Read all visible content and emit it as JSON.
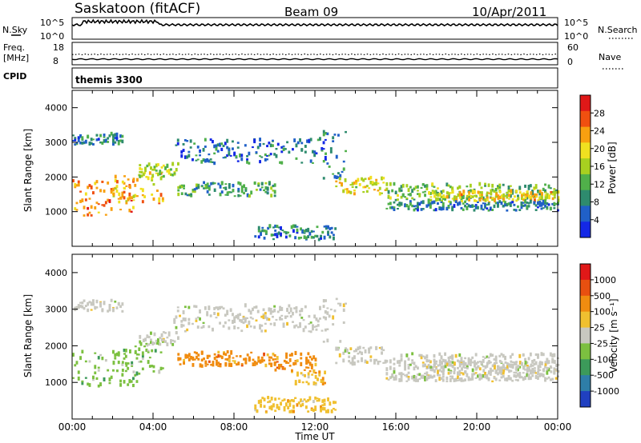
{
  "header": {
    "station": "Saskatoon (fitACF)",
    "beam": "Beam 09",
    "date": "10/Apr/2011"
  },
  "noise_panel": {
    "left_label": "N.Sky",
    "left_ticks": [
      "10^5",
      "10^0"
    ],
    "right_label": "N.Search",
    "right_ticks": [
      "10^5",
      "10^0"
    ]
  },
  "freq_panel": {
    "left_label_line1": "Freq.",
    "left_label_line2": "[MHz]",
    "left_ticks": [
      "18",
      "8"
    ],
    "right_label": "Nave",
    "right_ticks": [
      "60",
      "0"
    ]
  },
  "cpid_panel": {
    "label": "CPID",
    "value": "themis 3300"
  },
  "chart_data": [
    {
      "type": "heatmap",
      "name": "power",
      "ylabel": "Slant Range [km]",
      "ylim": [
        0,
        4500
      ],
      "yticks": [
        "1000",
        "2000",
        "3000",
        "4000"
      ],
      "xlim_hours": [
        0,
        24
      ],
      "colorbar_label": "Power [dB]",
      "colorbar_ticks": [
        "4",
        "8",
        "12",
        "16",
        "20",
        "24",
        "28"
      ],
      "colorbar_colors": [
        "#1428e6",
        "#2060c8",
        "#2e8b6e",
        "#50b04a",
        "#a8d020",
        "#f0e020",
        "#f8a010",
        "#f05010",
        "#e01818"
      ],
      "bands": [
        {
          "start": 0.0,
          "end": 3.3,
          "lo": 850,
          "hi": 1850,
          "p": 22
        },
        {
          "start": 0.0,
          "end": 2.5,
          "lo": 2900,
          "hi": 3200,
          "p": 6
        },
        {
          "start": 2.0,
          "end": 4.5,
          "lo": 1200,
          "hi": 2100,
          "p": 20
        },
        {
          "start": 3.3,
          "end": 5.2,
          "lo": 1950,
          "hi": 2350,
          "p": 14
        },
        {
          "start": 5.0,
          "end": 12.5,
          "lo": 2350,
          "hi": 3050,
          "p": 5
        },
        {
          "start": 5.2,
          "end": 10.0,
          "lo": 1400,
          "hi": 1800,
          "p": 9
        },
        {
          "start": 9.0,
          "end": 13.0,
          "lo": 150,
          "hi": 550,
          "p": 6
        },
        {
          "start": 12.3,
          "end": 13.5,
          "lo": 1900,
          "hi": 3300,
          "p": 7
        },
        {
          "start": 13.0,
          "end": 15.5,
          "lo": 1450,
          "hi": 1950,
          "p": 17
        },
        {
          "start": 15.5,
          "end": 24.0,
          "lo": 1300,
          "hi": 1750,
          "p": 11
        },
        {
          "start": 17.5,
          "end": 24.0,
          "lo": 1250,
          "hi": 1550,
          "p": 18
        },
        {
          "start": 15.5,
          "end": 24.0,
          "lo": 1000,
          "hi": 1250,
          "p": 6
        }
      ]
    },
    {
      "type": "heatmap",
      "name": "velocity",
      "ylabel": "Slant Range [km]",
      "ylim": [
        0,
        4500
      ],
      "yticks": [
        "1000",
        "2000",
        "3000",
        "4000"
      ],
      "xlim_hours": [
        0,
        24
      ],
      "xticks": [
        "00:00",
        "04:00",
        "08:00",
        "12:00",
        "16:00",
        "20:00",
        "00:00"
      ],
      "xlabel": "Time UT",
      "colorbar_label": "Velocity [m s⁻¹]",
      "colorbar_ticks": [
        "1000",
        "500",
        "100",
        "25",
        "-25",
        "-100",
        "-500",
        "-1000"
      ],
      "colorbar_colors": [
        "#2040c0",
        "#2e7ea8",
        "#3c9a5a",
        "#7cc040",
        "#c8c8c0",
        "#f0c030",
        "#f08c10",
        "#e85010",
        "#e01818"
      ],
      "bands": [
        {
          "start": 0.0,
          "end": 3.3,
          "lo": 850,
          "hi": 1850,
          "v": 3
        },
        {
          "start": 0.0,
          "end": 2.5,
          "lo": 2900,
          "hi": 3200,
          "v": 4
        },
        {
          "start": 2.0,
          "end": 4.5,
          "lo": 1200,
          "hi": 2100,
          "v": 3
        },
        {
          "start": 3.3,
          "end": 5.2,
          "lo": 1950,
          "hi": 2350,
          "v": 4
        },
        {
          "start": 5.0,
          "end": 12.5,
          "lo": 2350,
          "hi": 3050,
          "v": 4
        },
        {
          "start": 5.2,
          "end": 10.0,
          "lo": 1400,
          "hi": 1800,
          "v": 6
        },
        {
          "start": 9.0,
          "end": 13.0,
          "lo": 150,
          "hi": 550,
          "v": 5
        },
        {
          "start": 12.3,
          "end": 13.5,
          "lo": 1900,
          "hi": 3300,
          "v": 4
        },
        {
          "start": 13.0,
          "end": 15.5,
          "lo": 1450,
          "hi": 1950,
          "v": 4
        },
        {
          "start": 15.5,
          "end": 24.0,
          "lo": 1300,
          "hi": 1750,
          "v": 4
        },
        {
          "start": 17.5,
          "end": 24.0,
          "lo": 1250,
          "hi": 1550,
          "v": 4
        },
        {
          "start": 15.5,
          "end": 24.0,
          "lo": 1000,
          "hi": 1250,
          "v": 4
        },
        {
          "start": 10.0,
          "end": 12.0,
          "lo": 1250,
          "hi": 1750,
          "v": 6
        },
        {
          "start": 11.0,
          "end": 12.5,
          "lo": 900,
          "hi": 1250,
          "v": 5
        }
      ]
    }
  ]
}
